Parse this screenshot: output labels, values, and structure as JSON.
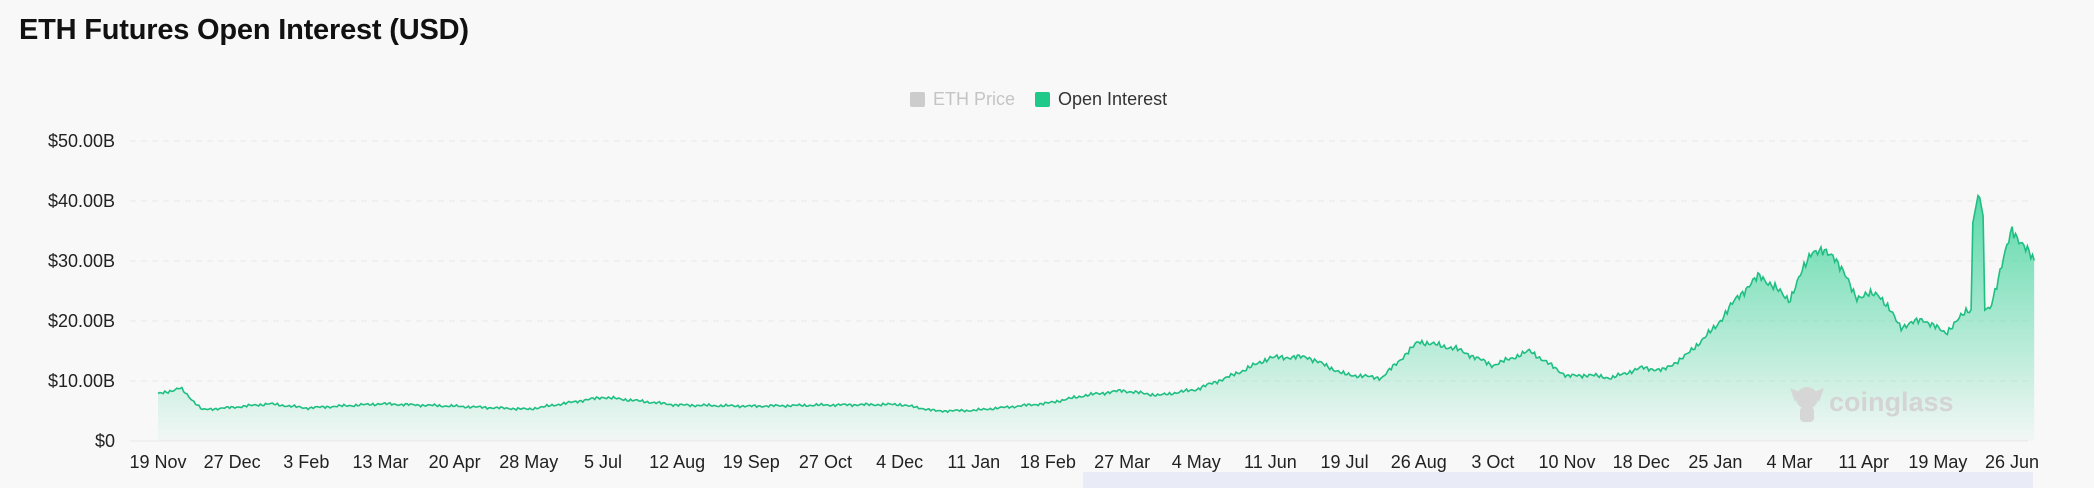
{
  "page": {
    "title": "ETH Futures Open Interest (USD)"
  },
  "legend": [
    {
      "label": "ETH Price",
      "color": "#cccccc",
      "active": false
    },
    {
      "label": "Open Interest",
      "color": "#1ec98a",
      "active": true
    }
  ],
  "watermark": {
    "text": "coinglass"
  },
  "colors": {
    "line": "#1fbf82",
    "fill_top": "#31d195",
    "grid": "#e9e9e9"
  },
  "chart_data": {
    "type": "area",
    "title": "ETH Futures Open Interest (USD)",
    "xlabel": "",
    "ylabel": "",
    "legend_position": "top-center",
    "grid": true,
    "ylim": [
      0,
      50
    ],
    "y_unit": "USD billions",
    "y_ticks": [
      "$0",
      "$10.00B",
      "$20.00B",
      "$30.00B",
      "$40.00B",
      "$50.00B"
    ],
    "x_ticks": [
      "19 Nov",
      "27 Dec",
      "3 Feb",
      "13 Mar",
      "20 Apr",
      "28 May",
      "5 Jul",
      "12 Aug",
      "19 Sep",
      "27 Oct",
      "4 Dec",
      "11 Jan",
      "18 Feb",
      "27 Mar",
      "4 May",
      "11 Jun",
      "19 Jul",
      "26 Aug",
      "3 Oct",
      "10 Nov",
      "18 Dec",
      "25 Jan",
      "4 Mar",
      "11 Apr",
      "19 May",
      "26 Jun"
    ],
    "series": [
      {
        "name": "Open Interest",
        "x": [
          0,
          0.3,
          0.6,
          1.0,
          1.5,
          2,
          3,
          4,
          5,
          6,
          7,
          8,
          9,
          10,
          10.5,
          11,
          11.5,
          12,
          12.5,
          13,
          13.5,
          14,
          14.5,
          15,
          15.5,
          16,
          16.5,
          17,
          17.5,
          18,
          18.5,
          19,
          19.3,
          19.6,
          20,
          20.3,
          20.6,
          21,
          21.3,
          21.6,
          22,
          22.3,
          22.6,
          22.9,
          23.2,
          23.5,
          23.8,
          24.1,
          24.4,
          24.7,
          25,
          25.3
        ],
        "values": [
          7.8,
          8.8,
          5.2,
          5.6,
          6.2,
          5.5,
          6.2,
          5.8,
          5.3,
          7.3,
          6.0,
          5.8,
          6.0,
          6.1,
          5.0,
          5.1,
          5.7,
          6.3,
          7.6,
          8.4,
          7.6,
          8.6,
          11.0,
          13.9,
          14.0,
          11.1,
          10.5,
          16.6,
          15.4,
          12.6,
          15.0,
          10.8,
          11.0,
          10.5,
          12.2,
          11.8,
          14.2,
          19.0,
          24.0,
          27.6,
          23.5,
          31.8,
          31.0,
          24.0,
          24.6,
          19.0,
          20.3,
          18.0,
          21.8,
          22.0,
          35.3,
          30.0
        ]
      },
      {
        "name": "ETH Price",
        "values": []
      }
    ]
  }
}
